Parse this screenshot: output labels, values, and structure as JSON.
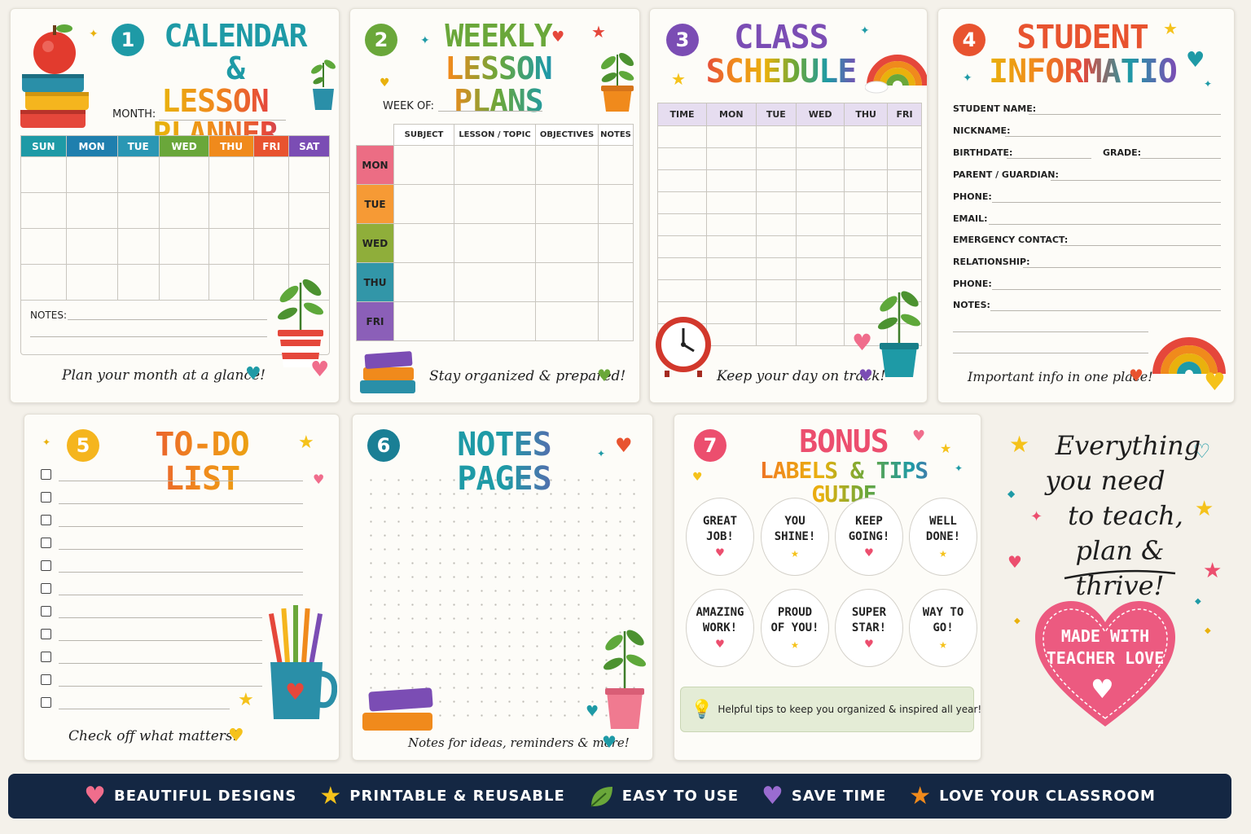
{
  "colors": {
    "sun": "#1e9aa6",
    "mon": "#1f7fae",
    "tue": "#2a97b4",
    "wed": "#6aa73a",
    "thu": "#f08a1c",
    "fri": "#e8532f",
    "sat": "#7b4db4",
    "wk_mon": "#ec6d84",
    "wk_tue": "#f69a35",
    "wk_wed": "#8fae3a",
    "wk_thu": "#3296a8",
    "wk_fri": "#8b5fb8",
    "navy": "#142743"
  },
  "card1": {
    "number": "1",
    "title_line1": "CALENDAR &",
    "title_line2": "LESSON PLANNER",
    "month_label": "MONTH:",
    "days": [
      "SUN",
      "MON",
      "TUE",
      "WED",
      "THU",
      "FRI",
      "SAT"
    ],
    "notes_label": "NOTES:",
    "tagline": "Plan your month at a glance!"
  },
  "card2": {
    "number": "2",
    "title_line1": "WEEKLY",
    "title_line2": "LESSON PLANS",
    "week_label": "WEEK OF:",
    "columns": [
      "SUBJECT",
      "LESSON / TOPIC",
      "OBJECTIVES",
      "NOTES"
    ],
    "days": [
      "MON",
      "TUE",
      "WED",
      "THU",
      "FRI"
    ],
    "tagline": "Stay organized & prepared!"
  },
  "card3": {
    "number": "3",
    "title_line1": "CLASS",
    "title_line2": "SCHEDULE",
    "columns": [
      "TIME",
      "MON",
      "TUE",
      "WED",
      "THU",
      "FRI"
    ],
    "tagline": "Keep your day on track!"
  },
  "card4": {
    "number": "4",
    "title_line1": "STUDENT",
    "title_line2": "INFORMATION",
    "fields": {
      "student_name": "STUDENT NAME:",
      "nickname": "NICKNAME:",
      "birthdate": "BIRTHDATE:",
      "grade": "GRADE:",
      "parent": "PARENT / GUARDIAN:",
      "phone": "PHONE:",
      "email": "EMAIL:",
      "emergency": "EMERGENCY CONTACT:",
      "relationship": "RELATIONSHIP:",
      "phone2": "PHONE:",
      "notes": "NOTES:"
    },
    "tagline": "Important info in one place!"
  },
  "card5": {
    "number": "5",
    "title": "TO-DO LIST",
    "tagline": "Check off what matters!"
  },
  "card6": {
    "number": "6",
    "title": "NOTES PAGES",
    "tagline": "Notes for ideas, reminders & more!"
  },
  "card7": {
    "number": "7",
    "title_line1": "BONUS",
    "title_line2": "LABELS & TIPS GUIDE",
    "badges": [
      {
        "l1": "GREAT",
        "l2": "JOB!",
        "icon": "heart-icon"
      },
      {
        "l1": "YOU",
        "l2": "SHINE!",
        "icon": "star-icon"
      },
      {
        "l1": "KEEP",
        "l2": "GOING!",
        "icon": "heart-icon"
      },
      {
        "l1": "WELL",
        "l2": "DONE!",
        "icon": "star-icon"
      },
      {
        "l1": "AMAZING",
        "l2": "WORK!",
        "icon": "heart-icon"
      },
      {
        "l1": "PROUD",
        "l2": "OF YOU!",
        "icon": "star-icon"
      },
      {
        "l1": "SUPER",
        "l2": "STAR!",
        "icon": "heart-icon"
      },
      {
        "l1": "WAY TO",
        "l2": "GO!",
        "icon": "star-icon"
      }
    ],
    "tip": "Helpful tips to keep you organized & inspired all year!"
  },
  "promo": {
    "line1": "Everything",
    "line2": "you need",
    "line3": "to teach,",
    "line4": "plan & thrive!",
    "heart_line1": "MADE WITH",
    "heart_line2": "TEACHER LOVE"
  },
  "footer": [
    {
      "icon": "heart-icon",
      "label": "BEAUTIFUL DESIGNS",
      "color": "#f06d8c"
    },
    {
      "icon": "star-icon",
      "label": "PRINTABLE & REUSABLE",
      "color": "#f5c21b"
    },
    {
      "icon": "leaf-icon",
      "label": "EASY TO USE",
      "color": "#6aa73a"
    },
    {
      "icon": "heart-icon",
      "label": "SAVE TIME",
      "color": "#9a6cd0"
    },
    {
      "icon": "star-icon",
      "label": "LOVE YOUR CLASSROOM",
      "color": "#f08a1c"
    }
  ]
}
